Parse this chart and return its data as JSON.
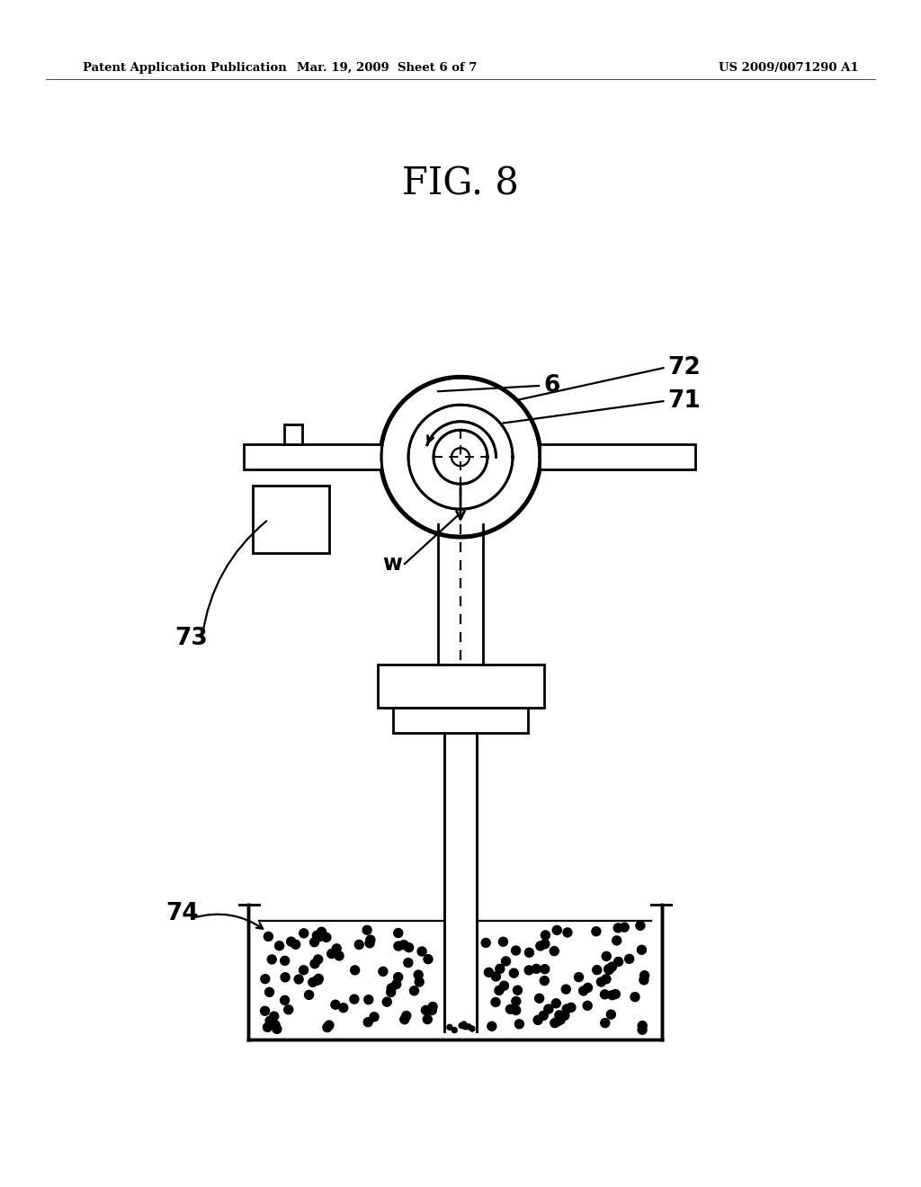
{
  "background_color": "#ffffff",
  "header_left": "Patent Application Publication",
  "header_mid": "Mar. 19, 2009  Sheet 6 of 7",
  "header_right": "US 2009/0071290 A1",
  "fig_label": "FIG. 8",
  "line_color": "#000000",
  "lw": 2.0,
  "fig_w": 10.24,
  "fig_h": 13.2,
  "dpi": 100
}
